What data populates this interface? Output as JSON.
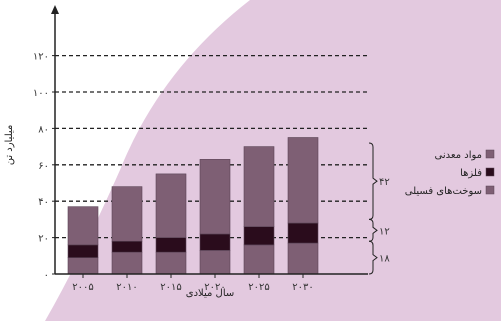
{
  "chart_data": {
    "type": "bar",
    "stacked": true,
    "title": "",
    "xlabel": "سال میلادی",
    "ylabel": "میلیارد تن",
    "categories": [
      "۲۰۰۵",
      "۲۰۱۰",
      "۲۰۱۵",
      "۲۰۲۰",
      "۲۰۲۵",
      "۲۰۳۰"
    ],
    "ylim": [
      0,
      130
    ],
    "yticks": [
      "۰",
      "۲۰",
      "۴۰",
      "۶۰",
      "۸۰",
      "۱۰۰",
      "۱۲۰"
    ],
    "ytick_values": [
      0,
      20,
      40,
      60,
      80,
      100,
      120
    ],
    "grid": "horizontal-dashed",
    "legend_position": "right",
    "series": [
      {
        "name": "سوخت‌های فسیلی",
        "color": "#7e5f74",
        "values": [
          9,
          12,
          12,
          13,
          16,
          17
        ]
      },
      {
        "name": "فلزها",
        "color": "#2a0c1c",
        "values": [
          7,
          6,
          8,
          9,
          10,
          11
        ]
      },
      {
        "name": "مواد معدنی",
        "color": "#7e5f74",
        "values": [
          21,
          30,
          35,
          41,
          44,
          47
        ]
      }
    ],
    "annotations": [
      {
        "text": "۴۲",
        "range": [
          30,
          72
        ]
      },
      {
        "text": "۱۲",
        "range": [
          18,
          30
        ]
      },
      {
        "text": "۱۸",
        "range": [
          0,
          18
        ]
      }
    ]
  }
}
